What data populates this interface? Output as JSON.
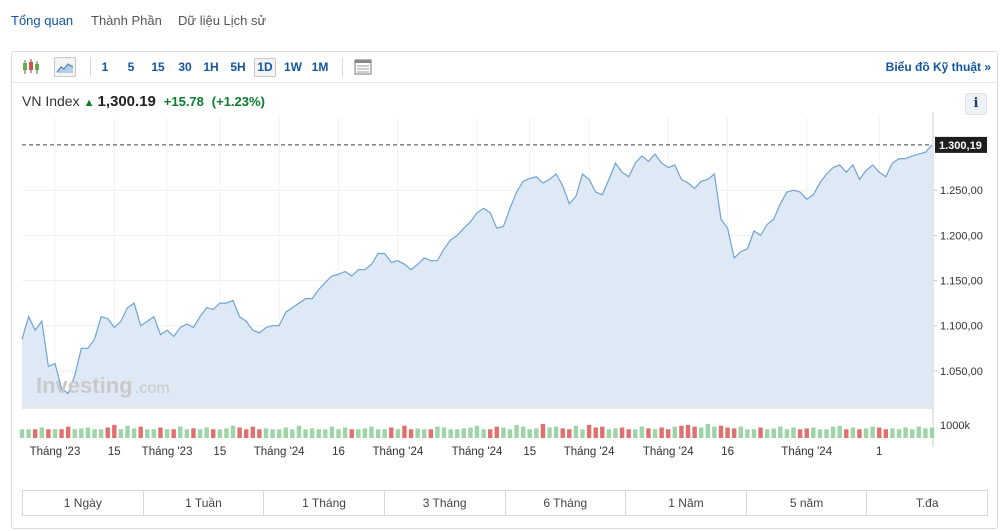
{
  "nav": {
    "tabs": [
      {
        "label": "Tổng quan",
        "active": true
      },
      {
        "label": "Thành Phần",
        "active": false
      },
      {
        "label": "Dữ liệu Lịch sử",
        "active": false
      }
    ]
  },
  "toolbar": {
    "icons": [
      "candlestick-icon",
      "area-chart-icon",
      "table-icon"
    ],
    "intervals": [
      "1",
      "5",
      "15",
      "30",
      "1H",
      "5H",
      "1D",
      "1W",
      "1M"
    ],
    "active_interval": "1D",
    "technical_link": "Biểu đồ Kỹ thuật »"
  },
  "quote": {
    "name": "VN Index",
    "price": "1,300.19",
    "change": "+15.78",
    "change_pct": "(+1.23%)",
    "info": "i",
    "up_color": "#0a7d2e"
  },
  "watermark": {
    "brand": "Investing",
    "suffix": ".com"
  },
  "chart_data": {
    "type": "area",
    "price_series": [
      1085,
      1110,
      1095,
      1105,
      1055,
      1058,
      1030,
      1025,
      1045,
      1075,
      1075,
      1085,
      1110,
      1108,
      1098,
      1105,
      1120,
      1125,
      1100,
      1105,
      1110,
      1090,
      1095,
      1088,
      1098,
      1102,
      1098,
      1110,
      1120,
      1118,
      1125,
      1125,
      1128,
      1110,
      1105,
      1095,
      1092,
      1098,
      1100,
      1100,
      1115,
      1120,
      1125,
      1130,
      1130,
      1140,
      1148,
      1155,
      1157,
      1160,
      1155,
      1162,
      1162,
      1168,
      1180,
      1180,
      1170,
      1172,
      1168,
      1162,
      1168,
      1175,
      1172,
      1172,
      1185,
      1195,
      1200,
      1208,
      1215,
      1225,
      1230,
      1225,
      1208,
      1210,
      1230,
      1248,
      1260,
      1263,
      1265,
      1258,
      1262,
      1268,
      1255,
      1235,
      1243,
      1268,
      1262,
      1248,
      1245,
      1262,
      1280,
      1270,
      1265,
      1280,
      1288,
      1282,
      1290,
      1280,
      1275,
      1278,
      1262,
      1258,
      1252,
      1260,
      1262,
      1268,
      1218,
      1208,
      1175,
      1182,
      1185,
      1205,
      1200,
      1212,
      1218,
      1235,
      1248,
      1250,
      1248,
      1240,
      1245,
      1258,
      1268,
      1275,
      1278,
      1270,
      1278,
      1262,
      1272,
      1278,
      1270,
      1265,
      1280,
      1285,
      1285,
      1288,
      1290,
      1292,
      1300.19
    ],
    "volume_series": [
      1,
      1,
      1,
      1.2,
      1,
      1,
      1,
      1.3,
      1,
      1.1,
      1.2,
      1,
      1,
      1.2,
      1.5,
      1,
      1.4,
      1.1,
      1.3,
      1,
      1,
      1.2,
      1,
      1,
      1.3,
      1,
      1.1,
      1,
      1.2,
      1,
      1,
      1.1,
      1.4,
      1.2,
      1,
      1.3,
      1,
      1.1,
      1,
      1,
      1.2,
      1,
      1.4,
      1,
      1.1,
      1,
      1,
      1.3,
      1,
      1.2,
      1,
      1,
      1.1,
      1.3,
      1,
      1,
      1.2,
      1,
      1.4,
      1,
      1.1,
      1,
      1,
      1.3,
      1.2,
      1,
      1,
      1.1,
      1.2,
      1.4,
      1,
      1,
      1.3,
      1.2,
      1,
      1.5,
      1.3,
      1,
      1.1,
      1.6,
      1.2,
      1.3,
      1.1,
      1,
      1.4,
      1,
      1.5,
      1.2,
      1.3,
      1,
      1.1,
      1.2,
      1,
      1,
      1.3,
      1.1,
      1,
      1.2,
      1,
      1.3,
      1.4,
      1.5,
      1.3,
      1.2,
      1.6,
      1.3,
      1.4,
      1.2,
      1.1,
      1.3,
      1,
      1,
      1.2,
      1,
      1.1,
      1.3,
      1,
      1.2,
      1,
      1.1,
      1.2,
      1,
      1,
      1.3,
      1.4,
      1,
      1.2,
      1,
      1.1,
      1.3,
      1.2,
      1,
      1.1,
      1,
      1.2,
      1,
      1.3,
      1.1,
      1.2
    ],
    "volume_colors": {
      "up": "#9fd3a8",
      "down": "#e0706f"
    },
    "y_ticks": [
      "1.050,00",
      "1.100,00",
      "1.150,00",
      "1.200,00",
      "1.250,00"
    ],
    "y_tick_values": [
      1050,
      1100,
      1150,
      1200,
      1250
    ],
    "ylim": [
      1010,
      1320
    ],
    "last_price_label": "1.300,19",
    "last_price_value": 1300.19,
    "volume_label": "1000k",
    "x_ticks": [
      "Tháng '23",
      "15",
      "Tháng '23",
      "15",
      "Tháng '24",
      "16",
      "Tháng '24",
      "Tháng '24",
      "15",
      "Tháng '24",
      "Tháng '24",
      "16",
      "Tháng '24",
      "1"
    ],
    "x_tick_indices": [
      5,
      14,
      22,
      30,
      39,
      48,
      57,
      69,
      77,
      86,
      98,
      107,
      119,
      130
    ],
    "line_color": "#6fa3d5",
    "fill_color": "#dfe9f5",
    "grid": true
  },
  "ranges": [
    "1 Ngày",
    "1 Tuần",
    "1 Tháng",
    "3 Tháng",
    "6 Tháng",
    "1 Năm",
    "5 năm",
    "T.đa"
  ]
}
